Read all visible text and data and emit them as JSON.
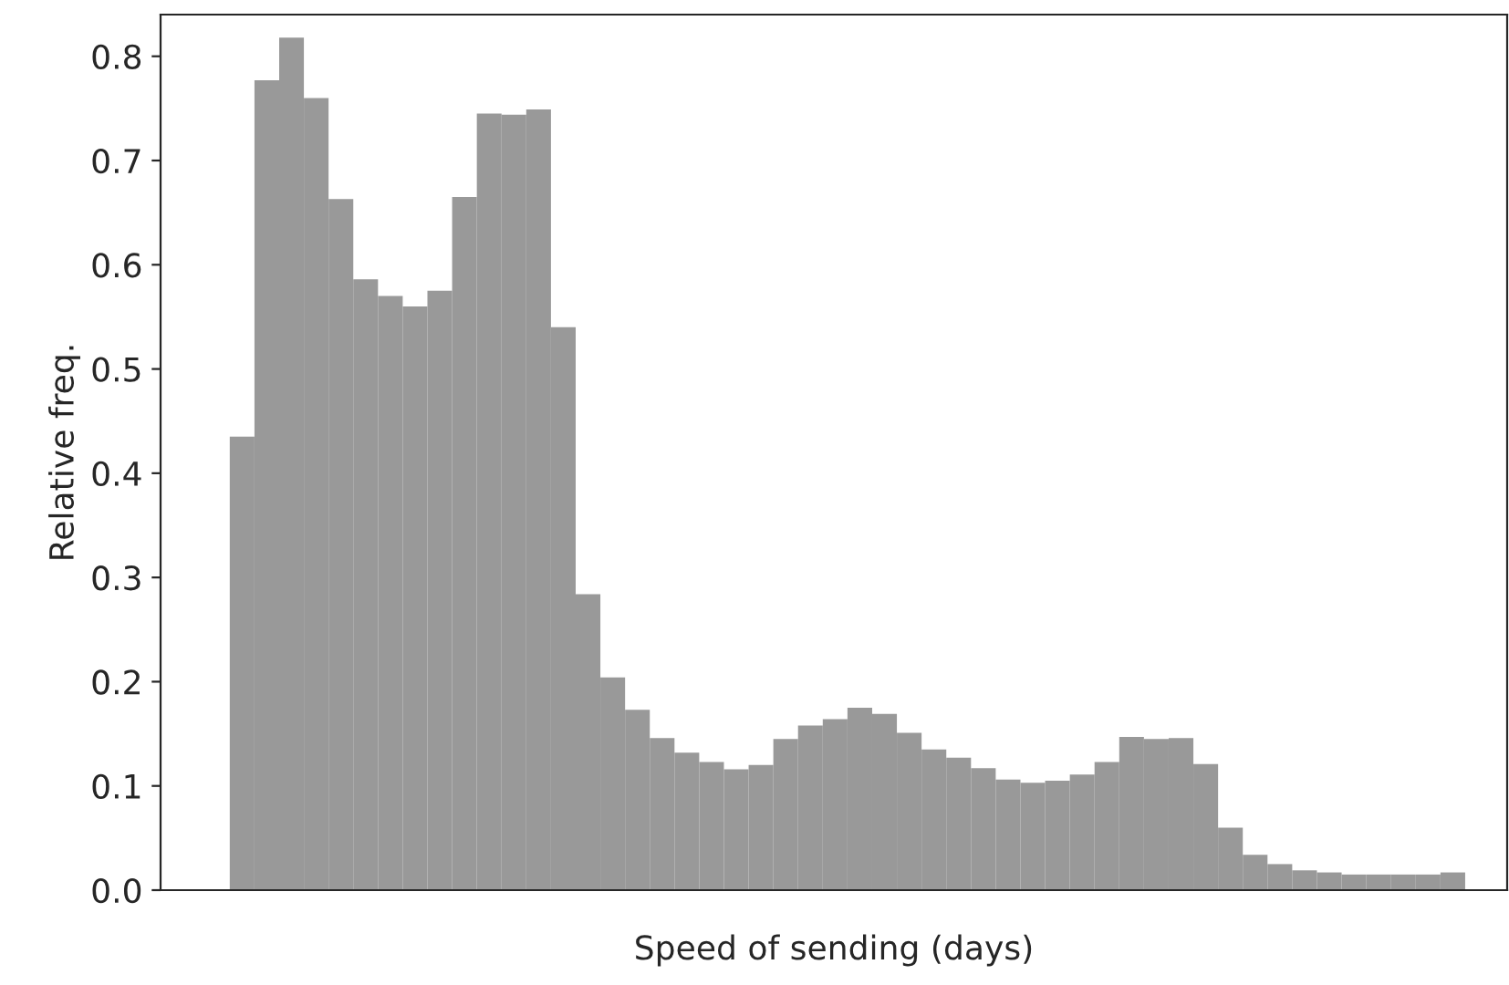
{
  "chart_data": {
    "type": "bar",
    "xlabel": "Speed of sending (days)",
    "ylabel": "Relative freq.",
    "categories": [
      null,
      null,
      null,
      null,
      null,
      null,
      null,
      null,
      null,
      null,
      null,
      null,
      null,
      null,
      null,
      null,
      null,
      null,
      null,
      null,
      null,
      null,
      null,
      null,
      null,
      null,
      null,
      null,
      null,
      null,
      null,
      null,
      null,
      null,
      null,
      null,
      null,
      null,
      null,
      null,
      null,
      null,
      null,
      null,
      null,
      null,
      null,
      null,
      null,
      null
    ],
    "values": [
      0.435,
      0.777,
      0.818,
      0.76,
      0.663,
      0.586,
      0.57,
      0.56,
      0.575,
      0.665,
      0.745,
      0.744,
      0.749,
      0.54,
      0.284,
      0.204,
      0.173,
      0.146,
      0.132,
      0.123,
      0.116,
      0.12,
      0.145,
      0.158,
      0.164,
      0.175,
      0.169,
      0.151,
      0.135,
      0.127,
      0.117,
      0.106,
      0.103,
      0.105,
      0.111,
      0.123,
      0.147,
      0.145,
      0.146,
      0.121,
      0.06,
      0.034,
      0.025,
      0.019,
      0.017,
      0.015,
      0.015,
      0.015,
      0.015,
      0.017
    ],
    "color": "#999999",
    "ylim": [
      0,
      0.84
    ],
    "yticks": [
      {
        "value": 0,
        "label": "0.0"
      },
      0.1,
      0.2,
      0.3,
      0.4,
      0.5,
      0.6,
      0.7,
      0.8
    ],
    "grid": false
  }
}
